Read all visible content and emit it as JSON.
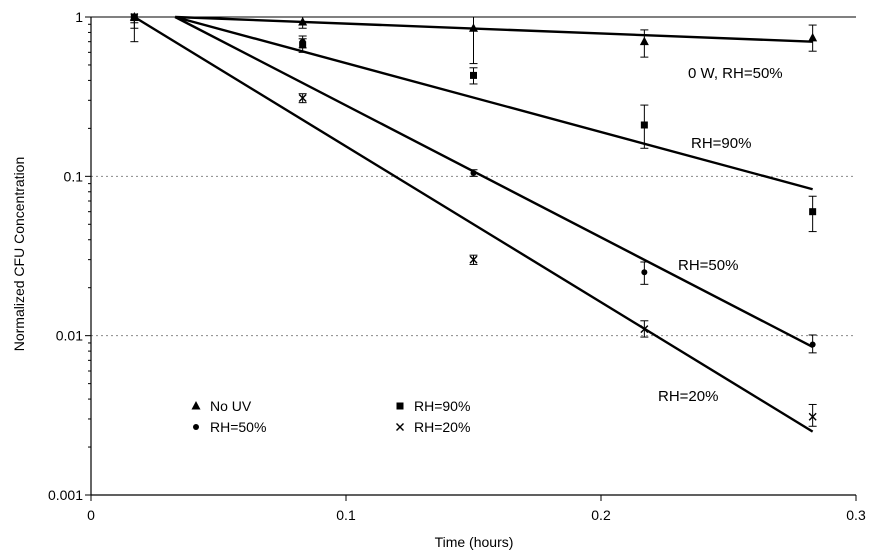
{
  "chart_data": {
    "type": "scatter",
    "title": "",
    "xlabel": "Time (hours)",
    "ylabel": "Normalized CFU Concentration",
    "xlim": [
      0,
      0.3
    ],
    "ylim": [
      0.001,
      1
    ],
    "yscale": "log",
    "x_ticks": [
      0,
      0.1,
      0.2,
      0.3
    ],
    "x_tick_labels": [
      "0",
      "0.1",
      "0.2",
      "0.3"
    ],
    "y_ticks": [
      0.001,
      0.01,
      0.1,
      1
    ],
    "y_tick_labels": [
      "0.001",
      "0.01",
      "0.1",
      "1"
    ],
    "grid": "horizontal dashed",
    "legend_position": "bottom-left",
    "series": [
      {
        "name": "No UV",
        "marker": "triangle",
        "points": [
          {
            "x": 0.017,
            "y": 1.0,
            "lo": 0.95,
            "hi": 1.0
          },
          {
            "x": 0.083,
            "y": 0.93,
            "lo": 0.85,
            "hi": 1.0
          },
          {
            "x": 0.15,
            "y": 0.85,
            "lo": 0.51,
            "hi": 1.0
          },
          {
            "x": 0.217,
            "y": 0.7,
            "lo": 0.56,
            "hi": 0.83
          },
          {
            "x": 0.283,
            "y": 0.74,
            "lo": 0.61,
            "hi": 0.89
          }
        ]
      },
      {
        "name": "RH=90%",
        "marker": "square",
        "points": [
          {
            "x": 0.017,
            "y": 1.0,
            "lo": 0.85,
            "hi": 1.0
          },
          {
            "x": 0.083,
            "y": 0.67,
            "lo": 0.6,
            "hi": 0.73
          },
          {
            "x": 0.15,
            "y": 0.43,
            "lo": 0.38,
            "hi": 0.48
          },
          {
            "x": 0.217,
            "y": 0.21,
            "lo": 0.15,
            "hi": 0.28
          },
          {
            "x": 0.283,
            "y": 0.06,
            "lo": 0.045,
            "hi": 0.075
          }
        ]
      },
      {
        "name": "RH=50%",
        "marker": "circle",
        "points": [
          {
            "x": 0.017,
            "y": 1.0,
            "lo": 0.7,
            "hi": 1.0
          },
          {
            "x": 0.083,
            "y": 0.7,
            "lo": 0.64,
            "hi": 0.76
          },
          {
            "x": 0.15,
            "y": 0.105,
            "lo": 0.1,
            "hi": 0.11
          },
          {
            "x": 0.217,
            "y": 0.025,
            "lo": 0.021,
            "hi": 0.029
          },
          {
            "x": 0.283,
            "y": 0.0088,
            "lo": 0.0078,
            "hi": 0.0101
          }
        ]
      },
      {
        "name": "RH=20%",
        "marker": "x",
        "points": [
          {
            "x": 0.017,
            "y": 1.0,
            "lo": 0.92,
            "hi": 1.0
          },
          {
            "x": 0.083,
            "y": 0.31,
            "lo": 0.29,
            "hi": 0.33
          },
          {
            "x": 0.15,
            "y": 0.03,
            "lo": 0.028,
            "hi": 0.032
          },
          {
            "x": 0.217,
            "y": 0.011,
            "lo": 0.0098,
            "hi": 0.0124
          },
          {
            "x": 0.283,
            "y": 0.0031,
            "lo": 0.0027,
            "hi": 0.0037
          }
        ]
      }
    ],
    "fit_lines": [
      {
        "label": "0 W, RH=50%",
        "x": [
          0.033,
          0.283
        ],
        "y": [
          1.0,
          0.7
        ]
      },
      {
        "label": "RH=90%",
        "x": [
          0.033,
          0.283
        ],
        "y": [
          1.0,
          0.083
        ]
      },
      {
        "label": "RH=50%",
        "x": [
          0.033,
          0.283
        ],
        "y": [
          1.0,
          0.0085
        ]
      },
      {
        "label": "RH=20%",
        "x": [
          0.017,
          0.283
        ],
        "y": [
          1.0,
          0.0025
        ]
      }
    ]
  }
}
